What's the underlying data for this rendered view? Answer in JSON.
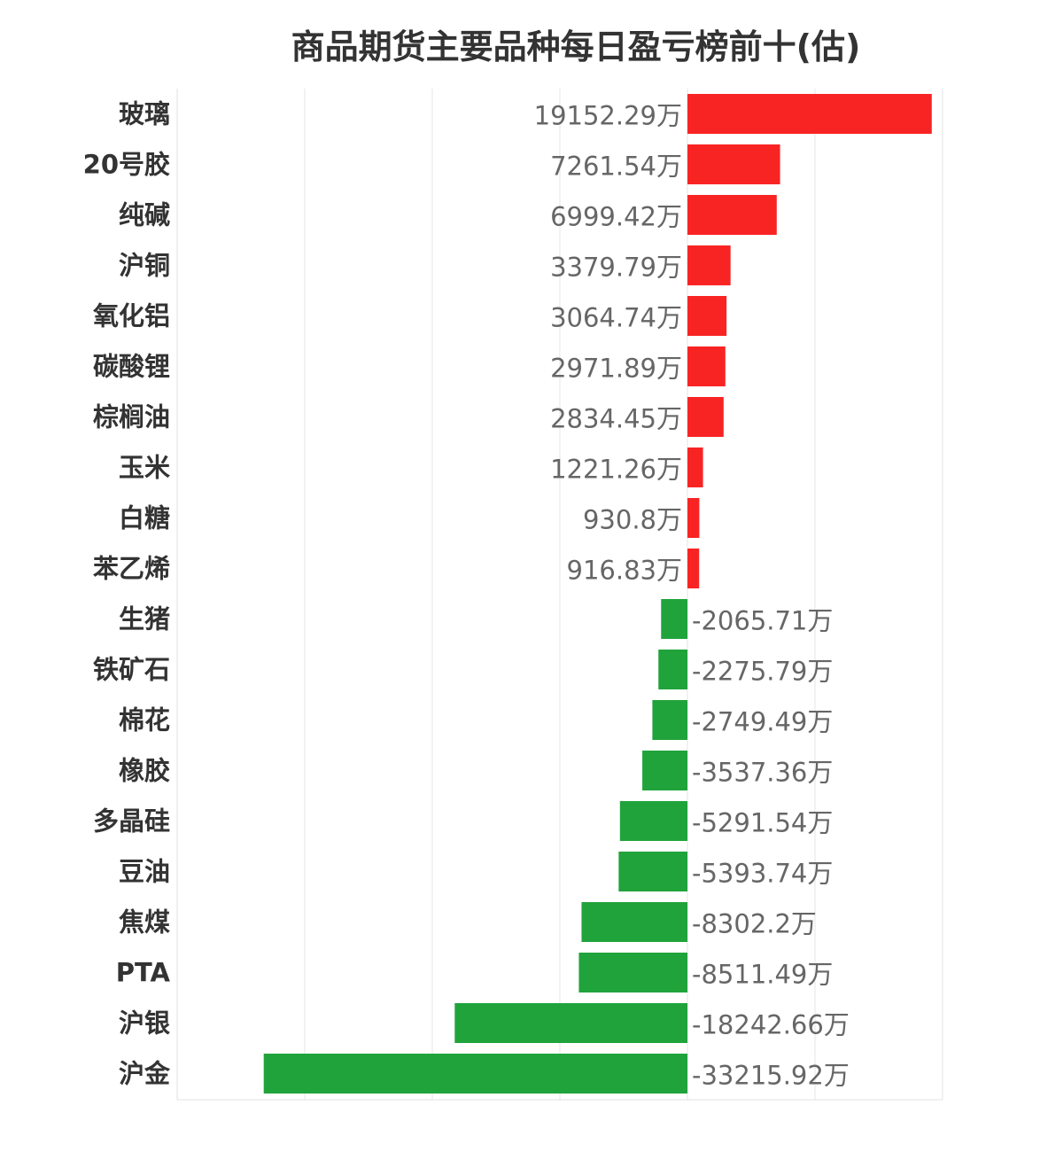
{
  "chart_data": {
    "type": "bar",
    "orientation": "horizontal",
    "title": "商品期货主要品种每日盈亏榜前十(估)",
    "xlabel": "",
    "ylabel": "",
    "unit_suffix": "万",
    "xlim": [
      -40000,
      20000
    ],
    "grid_step": 10000,
    "grid": true,
    "categories": [
      "玻璃",
      "20号胶",
      "纯碱",
      "沪铜",
      "氧化铝",
      "碳酸锂",
      "棕榈油",
      "玉米",
      "白糖",
      "苯乙烯",
      "生猪",
      "铁矿石",
      "棉花",
      "橡胶",
      "多晶硅",
      "豆油",
      "焦煤",
      "PTA",
      "沪银",
      "沪金"
    ],
    "values": [
      19152.29,
      7261.54,
      6999.42,
      3379.79,
      3064.74,
      2971.89,
      2834.45,
      1221.26,
      930.8,
      916.83,
      -2065.71,
      -2275.79,
      -2749.49,
      -3537.36,
      -5291.54,
      -5393.74,
      -8302.2,
      -8511.49,
      -18242.66,
      -33215.92
    ],
    "labels": [
      "19152.29万",
      "7261.54万",
      "6999.42万",
      "3379.79万",
      "3064.74万",
      "2971.89万",
      "2834.45万",
      "1221.26万",
      "930.8万",
      "916.83万",
      "-2065.71万",
      "-2275.79万",
      "-2749.49万",
      "-3537.36万",
      "-5291.54万",
      "-5393.74万",
      "-8302.2万",
      "-8511.49万",
      "-18242.66万",
      "-33215.92万"
    ],
    "colors": {
      "positive": "#f82424",
      "negative": "#21a33c"
    }
  }
}
